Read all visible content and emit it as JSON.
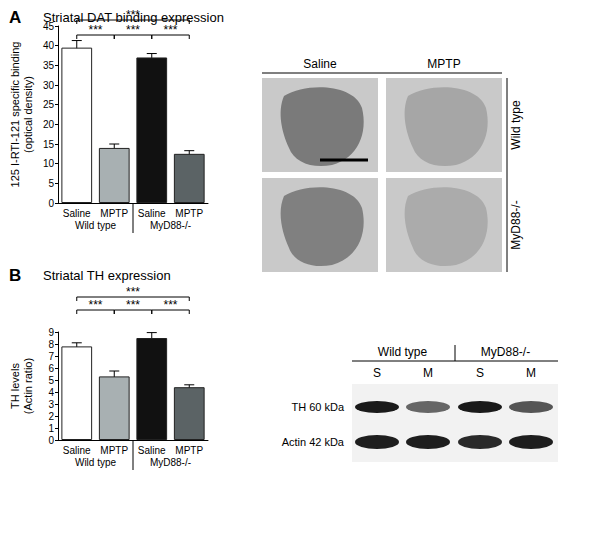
{
  "chart_data": [
    {
      "type": "bar",
      "panel": "A",
      "title": "Striatal DAT binding expression",
      "y_label": "125 I-RTI-121 specific binding\n(optical density)",
      "categories": [
        "Saline",
        "MPTP",
        "Saline",
        "MPTP"
      ],
      "groups": [
        "Wild type",
        "Wild type",
        "MyD88-/-",
        "MyD88-/-"
      ],
      "values": [
        39.5,
        14,
        37,
        12.5
      ],
      "errors": [
        1.8,
        1,
        1,
        0.8
      ],
      "colors": [
        "#ffffff",
        "#a8b0b2",
        "#111111",
        "#5b6365"
      ],
      "ylim": [
        0,
        45
      ],
      "yticks": [
        0,
        5,
        10,
        15,
        20,
        25,
        30,
        35,
        40,
        45
      ],
      "annotations": [
        {
          "from": 0,
          "to": 3,
          "text": "***"
        },
        {
          "from": 0,
          "to": 1,
          "text": "***"
        },
        {
          "from": 1,
          "to": 2,
          "text": "***"
        },
        {
          "from": 2,
          "to": 3,
          "text": "***"
        }
      ]
    },
    {
      "type": "bar",
      "panel": "B",
      "title": "Striatal TH expression",
      "y_label": "TH levels\n(Actin ratio)",
      "categories": [
        "Saline",
        "MPTP",
        "Saline",
        "MPTP"
      ],
      "groups": [
        "Wild type",
        "Wild type",
        "MyD88-/-",
        "MyD88-/-"
      ],
      "values": [
        7.8,
        5.3,
        8.5,
        4.4
      ],
      "errors": [
        0.3,
        0.45,
        0.45,
        0.2
      ],
      "colors": [
        "#ffffff",
        "#a8b0b2",
        "#111111",
        "#5b6365"
      ],
      "ylim": [
        0,
        9
      ],
      "yticks": [
        0,
        1,
        2,
        3,
        4,
        5,
        6,
        7,
        8,
        9
      ],
      "annotations": [
        {
          "from": 0,
          "to": 3,
          "text": "***"
        },
        {
          "from": 0,
          "to": 1,
          "text": "***"
        },
        {
          "from": 1,
          "to": 2,
          "text": "***"
        },
        {
          "from": 2,
          "to": 3,
          "text": "***"
        }
      ]
    }
  ],
  "images": {
    "autoradiography": {
      "columns": [
        "Saline",
        "MPTP"
      ],
      "rows": [
        "Wild type",
        "MyD88-/-"
      ]
    },
    "western_blot": {
      "groups": [
        "Wild type",
        "MyD88-/-"
      ],
      "lanes": [
        "S",
        "M",
        "S",
        "M"
      ],
      "bands": [
        "TH 60 kDa",
        "Actin 42 kDa"
      ]
    }
  }
}
